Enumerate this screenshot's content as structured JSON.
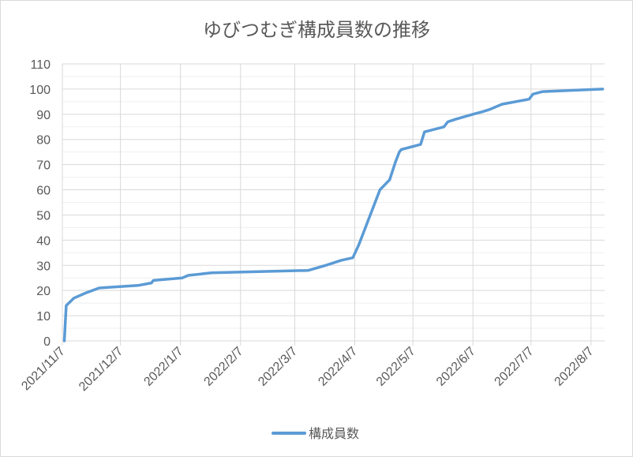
{
  "chart_data": {
    "type": "line",
    "title": "ゆびつむぎ構成員数の推移",
    "xlabel": "",
    "ylabel": "",
    "ylim": [
      0,
      110
    ],
    "y_major_step": 10,
    "y_minor_step": 5,
    "xlim": [
      "2021/11/7",
      "2022/8/14"
    ],
    "x_ticks": [
      "2021/11/7",
      "2021/12/7",
      "2022/1/7",
      "2022/2/7",
      "2022/3/7",
      "2022/4/7",
      "2022/5/7",
      "2022/6/7",
      "2022/7/7",
      "2022/8/7"
    ],
    "grid": true,
    "legend_position": "bottom",
    "series": [
      {
        "name": "構成員数",
        "color": "#5b9bd5",
        "points": [
          [
            "2021/11/8",
            0
          ],
          [
            "2021/11/9",
            14
          ],
          [
            "2021/11/13",
            17
          ],
          [
            "2021/11/19",
            19
          ],
          [
            "2021/11/26",
            21
          ],
          [
            "2021/12/16",
            22
          ],
          [
            "2021/12/23",
            23
          ],
          [
            "2021/12/24",
            24
          ],
          [
            "2022/1/8",
            25
          ],
          [
            "2022/1/11",
            26
          ],
          [
            "2022/1/23",
            27
          ],
          [
            "2022/3/14",
            28
          ],
          [
            "2022/3/23",
            30
          ],
          [
            "2022/3/31",
            32
          ],
          [
            "2022/4/6",
            33
          ],
          [
            "2022/4/9",
            38
          ],
          [
            "2022/4/15",
            50
          ],
          [
            "2022/4/18",
            56
          ],
          [
            "2022/4/20",
            60
          ],
          [
            "2022/4/25",
            64
          ],
          [
            "2022/4/28",
            71
          ],
          [
            "2022/4/30",
            75
          ],
          [
            "2022/5/1",
            76
          ],
          [
            "2022/5/11",
            78
          ],
          [
            "2022/5/13",
            83
          ],
          [
            "2022/5/23",
            85
          ],
          [
            "2022/5/25",
            87
          ],
          [
            "2022/5/29",
            88
          ],
          [
            "2022/6/7",
            90
          ],
          [
            "2022/6/12",
            91
          ],
          [
            "2022/6/16",
            92
          ],
          [
            "2022/6/22",
            94
          ],
          [
            "2022/7/6",
            96
          ],
          [
            "2022/7/8",
            98
          ],
          [
            "2022/7/13",
            99
          ],
          [
            "2022/8/13",
            100
          ]
        ]
      }
    ]
  }
}
